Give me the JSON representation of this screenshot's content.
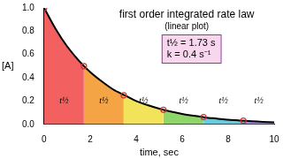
{
  "chart_data": {
    "type": "line",
    "title": "first order integrated rate law",
    "subtitle": "(linear plot)",
    "annotations": [
      "t½ = 1.73 s",
      "k = 0.4 s⁻¹"
    ],
    "x_label": "time, sec",
    "y_label": "[A]",
    "xlim": [
      0,
      10
    ],
    "xticks": [
      0,
      2,
      4,
      6,
      8,
      10
    ],
    "ylim": [
      0,
      1
    ],
    "yticks": [
      {
        "value": 0,
        "label": "0.0"
      },
      0.2,
      0.4,
      0.6,
      0.8,
      {
        "value": 1,
        "label": "1.0"
      }
    ],
    "grid": false,
    "series": [
      {
        "color": "#000000",
        "marker": "none",
        "line_style": "solid",
        "x": [
          0,
          0.5,
          1,
          1.5,
          2,
          2.5,
          3,
          3.5,
          4,
          4.5,
          5,
          5.5,
          6,
          6.5,
          7,
          7.5,
          8,
          8.5,
          9,
          9.5,
          10
        ],
        "values": [
          1.0,
          0.82,
          0.67,
          0.55,
          0.45,
          0.37,
          0.3,
          0.25,
          0.2,
          0.165,
          0.135,
          0.11,
          0.09,
          0.074,
          0.06,
          0.05,
          0.04,
          0.033,
          0.027,
          0.022,
          0.018
        ]
      },
      {
        "type": "scatter",
        "color": "#cc3333",
        "marker": "circle",
        "x": [
          0,
          1.73,
          3.46,
          5.19,
          6.93,
          8.66
        ],
        "values": [
          1.0,
          0.5,
          0.25,
          0.125,
          0.0625,
          0.031
        ]
      }
    ],
    "regions": [
      {
        "label": "t½",
        "color": "#f26060",
        "x": [
          0,
          0.5,
          1,
          1.5,
          1.73
        ],
        "values": [
          1.0,
          0.82,
          0.67,
          0.55,
          0.5
        ]
      },
      {
        "label": "t½",
        "color": "#f5a445",
        "x": [
          1.73,
          2,
          2.5,
          3,
          3.46
        ],
        "values": [
          0.5,
          0.45,
          0.37,
          0.3,
          0.25
        ]
      },
      {
        "label": "t½",
        "color": "#f2e45a",
        "x": [
          3.46,
          4,
          4.5,
          5,
          5.19
        ],
        "values": [
          0.25,
          0.2,
          0.165,
          0.135,
          0.125
        ]
      },
      {
        "label": "t½",
        "color": "#8fd66a",
        "x": [
          5.19,
          5.5,
          6,
          6.5,
          6.93
        ],
        "values": [
          0.125,
          0.11,
          0.09,
          0.074,
          0.0625
        ]
      },
      {
        "label": "t½",
        "color": "#66ccdd",
        "x": [
          6.93,
          7.5,
          8,
          8.66
        ],
        "values": [
          0.0625,
          0.05,
          0.04,
          0.031
        ]
      },
      {
        "label": "t½",
        "color": "#9a8ee0",
        "x": [
          8.66,
          9,
          9.5,
          10
        ],
        "values": [
          0.031,
          0.027,
          0.022,
          0.018
        ]
      }
    ]
  }
}
